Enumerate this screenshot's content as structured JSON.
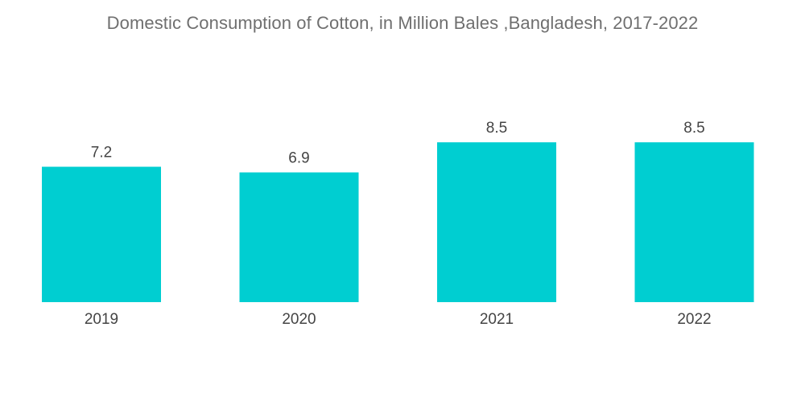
{
  "colors": {
    "bar": "#00ced1",
    "title": "#6f6f6f",
    "text": "#444444"
  },
  "chart_data": {
    "type": "bar",
    "title": "Domestic Consumption of Cotton, in Million Bales ,Bangladesh, 2017-2022",
    "xlabel": "",
    "ylabel": "",
    "categories": [
      "2019",
      "2020",
      "2021",
      "2022"
    ],
    "values": [
      7.2,
      6.9,
      8.5,
      8.5
    ],
    "value_labels": [
      "7.2",
      "6.9",
      "8.5",
      "8.5"
    ],
    "ylim": [
      0,
      10
    ],
    "grid": false,
    "legend": "none"
  }
}
